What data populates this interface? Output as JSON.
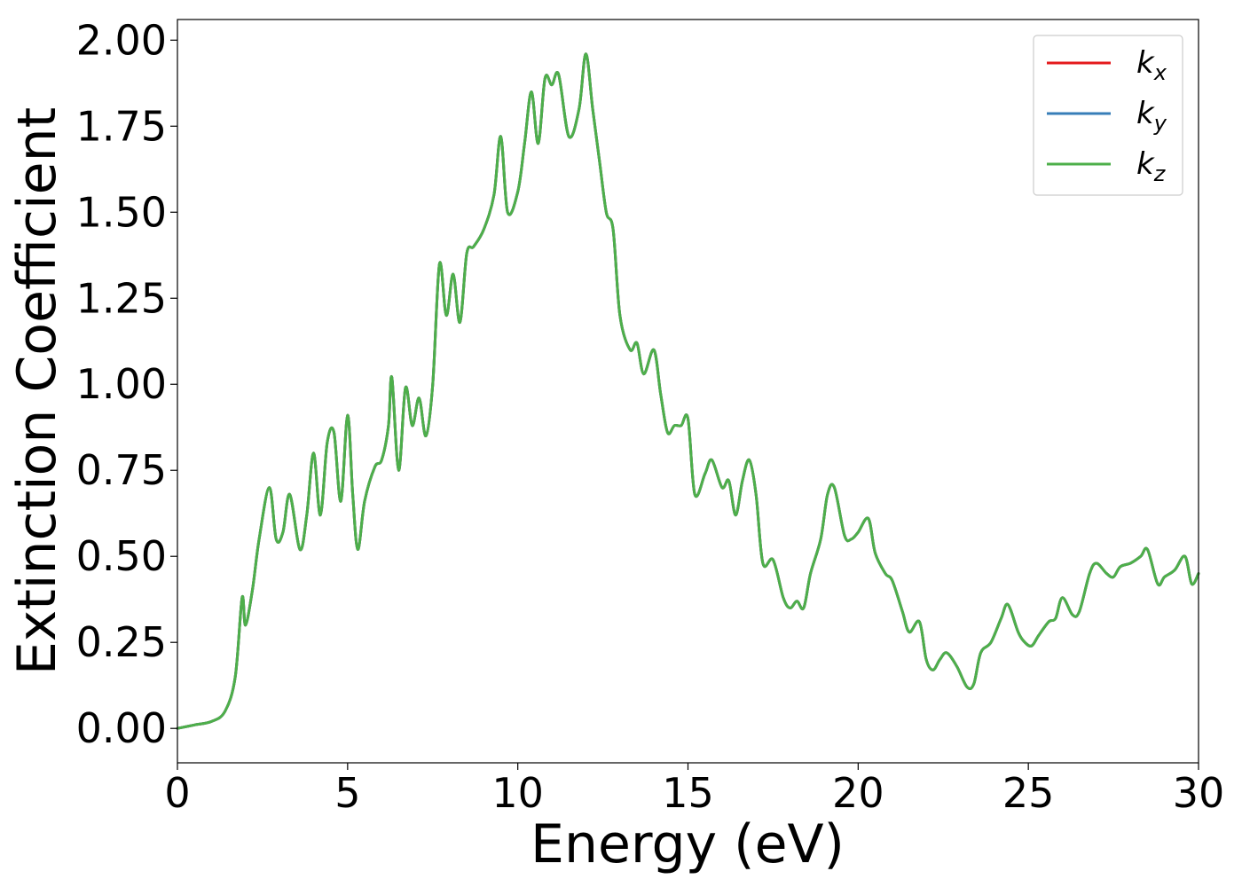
{
  "chart_data": {
    "type": "line",
    "xlabel": "Energy (eV)",
    "ylabel": "Extinction Coefficient",
    "xlim": [
      0,
      30
    ],
    "ylim": [
      -0.1,
      2.06
    ],
    "x_ticks": [
      "0",
      "5",
      "10",
      "15",
      "20",
      "25",
      "30"
    ],
    "x_tick_values": [
      0,
      5,
      10,
      15,
      20,
      25,
      30
    ],
    "y_ticks": [
      "0.00",
      "0.25",
      "0.50",
      "0.75",
      "1.00",
      "1.25",
      "1.50",
      "1.75",
      "2.00"
    ],
    "y_tick_values": [
      0,
      0.25,
      0.5,
      0.75,
      1.0,
      1.25,
      1.5,
      1.75,
      2.0
    ],
    "grid": false,
    "legend_position": "top-right",
    "x": [
      0,
      0.5,
      1.0,
      1.4,
      1.7,
      1.9,
      2.0,
      2.2,
      2.4,
      2.7,
      2.9,
      3.1,
      3.3,
      3.6,
      3.8,
      4.0,
      4.2,
      4.4,
      4.6,
      4.8,
      5.0,
      5.15,
      5.3,
      5.5,
      5.8,
      6.0,
      6.2,
      6.3,
      6.5,
      6.7,
      6.9,
      7.1,
      7.3,
      7.5,
      7.7,
      7.9,
      8.1,
      8.3,
      8.5,
      8.7,
      9.0,
      9.3,
      9.5,
      9.7,
      10.0,
      10.2,
      10.4,
      10.6,
      10.8,
      11.0,
      11.2,
      11.5,
      11.8,
      12.0,
      12.2,
      12.4,
      12.6,
      12.8,
      13.0,
      13.3,
      13.5,
      13.7,
      14.0,
      14.2,
      14.4,
      14.6,
      14.8,
      15.0,
      15.2,
      15.5,
      15.7,
      16.0,
      16.2,
      16.4,
      16.6,
      16.8,
      17.0,
      17.2,
      17.5,
      17.8,
      18.0,
      18.2,
      18.4,
      18.6,
      18.9,
      19.1,
      19.3,
      19.6,
      19.8,
      20.0,
      20.3,
      20.5,
      20.8,
      21.0,
      21.3,
      21.5,
      21.8,
      22.0,
      22.2,
      22.4,
      22.6,
      22.9,
      23.2,
      23.4,
      23.6,
      23.9,
      24.2,
      24.4,
      24.7,
      24.9,
      25.1,
      25.3,
      25.6,
      25.8,
      26.0,
      26.3,
      26.5,
      26.8,
      27.0,
      27.3,
      27.5,
      27.7,
      28.0,
      28.3,
      28.5,
      28.8,
      29.0,
      29.3,
      29.6,
      29.8,
      30.0
    ],
    "series": [
      {
        "name": "kx",
        "color": "#e41a1c",
        "values": [
          0,
          0.01,
          0.02,
          0.05,
          0.15,
          0.38,
          0.3,
          0.4,
          0.55,
          0.7,
          0.55,
          0.57,
          0.68,
          0.52,
          0.62,
          0.8,
          0.62,
          0.83,
          0.86,
          0.66,
          0.91,
          0.68,
          0.52,
          0.66,
          0.76,
          0.78,
          0.88,
          1.02,
          0.75,
          0.99,
          0.88,
          0.96,
          0.85,
          1.0,
          1.35,
          1.2,
          1.32,
          1.18,
          1.38,
          1.4,
          1.45,
          1.55,
          1.72,
          1.5,
          1.56,
          1.7,
          1.85,
          1.7,
          1.89,
          1.87,
          1.9,
          1.72,
          1.8,
          1.96,
          1.8,
          1.65,
          1.5,
          1.45,
          1.2,
          1.1,
          1.12,
          1.03,
          1.1,
          0.97,
          0.86,
          0.88,
          0.88,
          0.9,
          0.68,
          0.74,
          0.78,
          0.7,
          0.72,
          0.62,
          0.72,
          0.78,
          0.68,
          0.48,
          0.49,
          0.38,
          0.35,
          0.37,
          0.35,
          0.45,
          0.55,
          0.68,
          0.7,
          0.56,
          0.55,
          0.57,
          0.61,
          0.51,
          0.45,
          0.43,
          0.34,
          0.28,
          0.31,
          0.2,
          0.17,
          0.2,
          0.22,
          0.18,
          0.12,
          0.13,
          0.22,
          0.25,
          0.32,
          0.36,
          0.28,
          0.25,
          0.24,
          0.27,
          0.31,
          0.32,
          0.38,
          0.33,
          0.34,
          0.45,
          0.48,
          0.45,
          0.44,
          0.47,
          0.48,
          0.5,
          0.52,
          0.42,
          0.44,
          0.46,
          0.5,
          0.42,
          0.45
        ]
      },
      {
        "name": "ky",
        "color": "#377eb8",
        "values": [
          0,
          0.01,
          0.02,
          0.05,
          0.15,
          0.38,
          0.3,
          0.4,
          0.55,
          0.7,
          0.55,
          0.57,
          0.68,
          0.52,
          0.62,
          0.8,
          0.62,
          0.83,
          0.86,
          0.66,
          0.91,
          0.68,
          0.52,
          0.66,
          0.76,
          0.78,
          0.88,
          1.02,
          0.75,
          0.99,
          0.88,
          0.96,
          0.85,
          1.0,
          1.35,
          1.2,
          1.32,
          1.18,
          1.38,
          1.4,
          1.45,
          1.55,
          1.72,
          1.5,
          1.56,
          1.7,
          1.85,
          1.7,
          1.89,
          1.87,
          1.9,
          1.72,
          1.8,
          1.96,
          1.8,
          1.65,
          1.5,
          1.45,
          1.2,
          1.1,
          1.12,
          1.03,
          1.1,
          0.97,
          0.86,
          0.88,
          0.88,
          0.9,
          0.68,
          0.74,
          0.78,
          0.7,
          0.72,
          0.62,
          0.72,
          0.78,
          0.68,
          0.48,
          0.49,
          0.38,
          0.35,
          0.37,
          0.35,
          0.45,
          0.55,
          0.68,
          0.7,
          0.56,
          0.55,
          0.57,
          0.61,
          0.51,
          0.45,
          0.43,
          0.34,
          0.28,
          0.31,
          0.2,
          0.17,
          0.2,
          0.22,
          0.18,
          0.12,
          0.13,
          0.22,
          0.25,
          0.32,
          0.36,
          0.28,
          0.25,
          0.24,
          0.27,
          0.31,
          0.32,
          0.38,
          0.33,
          0.34,
          0.45,
          0.48,
          0.45,
          0.44,
          0.47,
          0.48,
          0.5,
          0.52,
          0.42,
          0.44,
          0.46,
          0.5,
          0.42,
          0.45
        ]
      },
      {
        "name": "kz",
        "color": "#4daf4a",
        "values": [
          0,
          0.01,
          0.02,
          0.05,
          0.15,
          0.38,
          0.3,
          0.4,
          0.55,
          0.7,
          0.55,
          0.57,
          0.68,
          0.52,
          0.62,
          0.8,
          0.62,
          0.83,
          0.86,
          0.66,
          0.91,
          0.68,
          0.52,
          0.66,
          0.76,
          0.78,
          0.88,
          1.02,
          0.75,
          0.99,
          0.88,
          0.96,
          0.85,
          1.0,
          1.35,
          1.2,
          1.32,
          1.18,
          1.38,
          1.4,
          1.45,
          1.55,
          1.72,
          1.5,
          1.56,
          1.7,
          1.85,
          1.7,
          1.89,
          1.87,
          1.9,
          1.72,
          1.8,
          1.96,
          1.8,
          1.65,
          1.5,
          1.45,
          1.2,
          1.1,
          1.12,
          1.03,
          1.1,
          0.97,
          0.86,
          0.88,
          0.88,
          0.9,
          0.68,
          0.74,
          0.78,
          0.7,
          0.72,
          0.62,
          0.72,
          0.78,
          0.68,
          0.48,
          0.49,
          0.38,
          0.35,
          0.37,
          0.35,
          0.45,
          0.55,
          0.68,
          0.7,
          0.56,
          0.55,
          0.57,
          0.61,
          0.51,
          0.45,
          0.43,
          0.34,
          0.28,
          0.31,
          0.2,
          0.17,
          0.2,
          0.22,
          0.18,
          0.12,
          0.13,
          0.22,
          0.25,
          0.32,
          0.36,
          0.28,
          0.25,
          0.24,
          0.27,
          0.31,
          0.32,
          0.38,
          0.33,
          0.34,
          0.45,
          0.48,
          0.45,
          0.44,
          0.47,
          0.48,
          0.5,
          0.52,
          0.42,
          0.44,
          0.46,
          0.5,
          0.42,
          0.45
        ]
      }
    ],
    "legend": [
      {
        "base": "k",
        "sub": "x",
        "color": "#e41a1c"
      },
      {
        "base": "k",
        "sub": "y",
        "color": "#377eb8"
      },
      {
        "base": "k",
        "sub": "z",
        "color": "#4daf4a"
      }
    ]
  }
}
